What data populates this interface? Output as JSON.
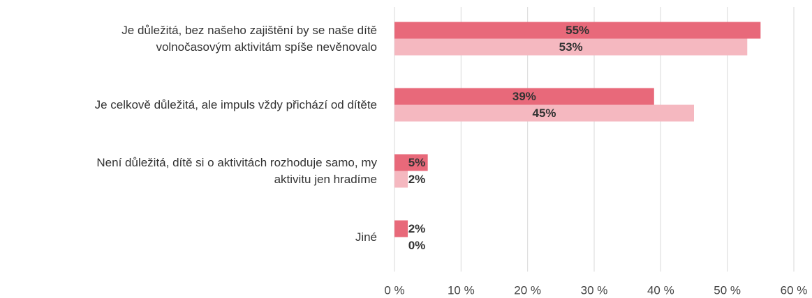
{
  "chart_data": {
    "type": "bar",
    "orientation": "horizontal",
    "categories": [
      "Je důležitá, bez našeho zajištění by se naše dítě\nvolnočasovým aktivitám spíše nevěnovalo",
      "Je celkově důležitá, ale impuls vždy přichází od dítěte",
      "Není důležitá, dítě si o aktivitách rozhoduje samo, my\naktivitu jen hradíme",
      "Jiné"
    ],
    "series": [
      {
        "color": "#e8697a",
        "values": [
          55,
          39,
          5,
          2
        ],
        "value_labels": [
          "55%",
          "39%",
          "5%",
          "2%"
        ]
      },
      {
        "color": "#f5b8c0",
        "values": [
          53,
          45,
          2,
          0
        ],
        "value_labels": [
          "53%",
          "45%",
          "2%",
          "0%"
        ]
      }
    ],
    "xlim": [
      0,
      60
    ],
    "xticks": [
      {
        "value": 0,
        "label": "0 %"
      },
      {
        "value": 10,
        "label": "10 %"
      },
      {
        "value": 20,
        "label": "20 %"
      },
      {
        "value": 30,
        "label": "30 %"
      },
      {
        "value": 40,
        "label": "40 %"
      },
      {
        "value": 50,
        "label": "50 %"
      },
      {
        "value": 60,
        "label": "60 %"
      }
    ],
    "grid": true
  }
}
